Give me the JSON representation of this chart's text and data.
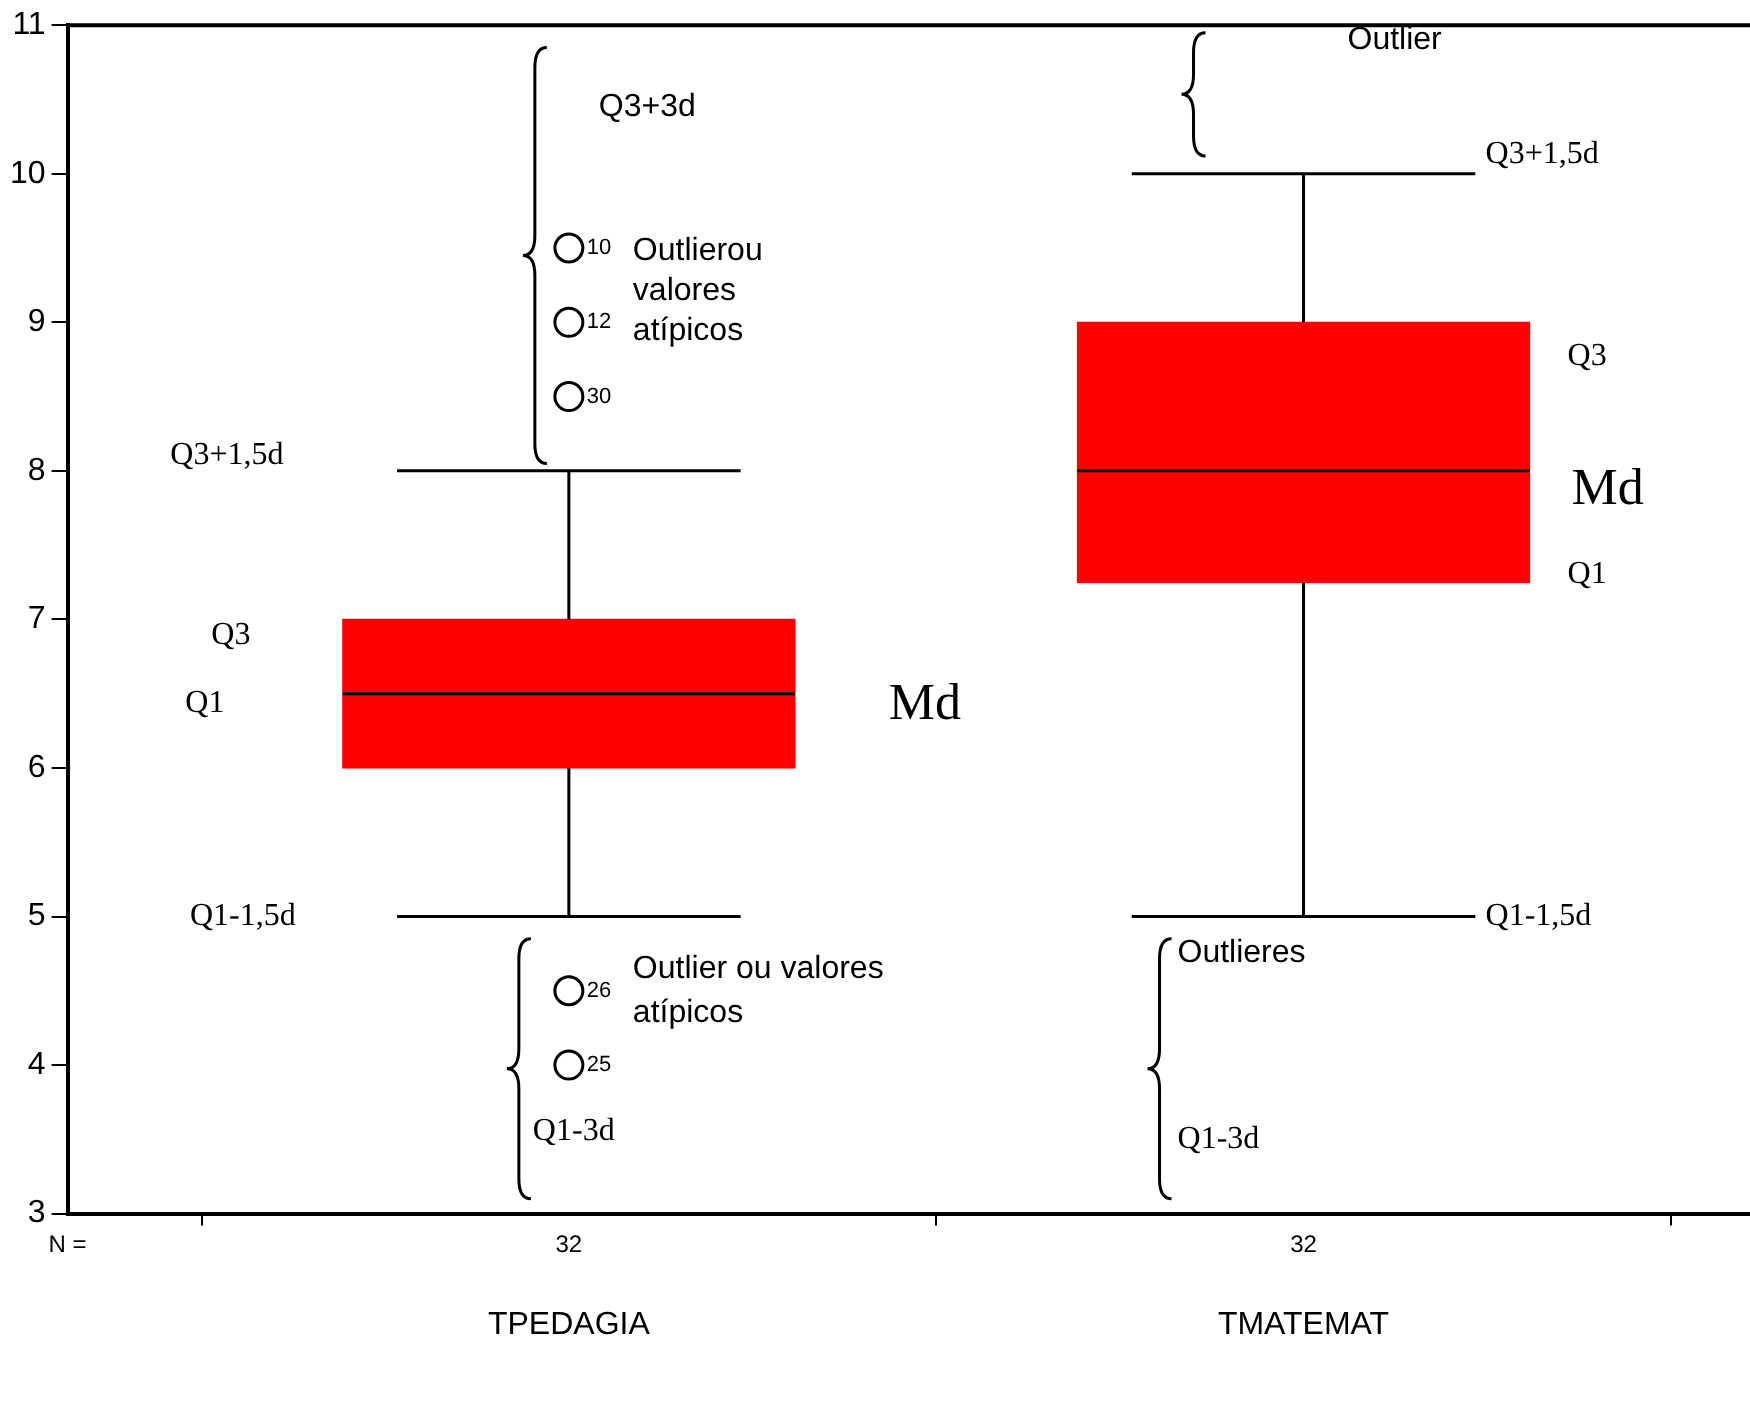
{
  "chart_data": {
    "type": "box",
    "categories": [
      "TPEDAGIA",
      "TMATEMAT"
    ],
    "series": [
      {
        "color": "#ff0000",
        "boxes": [
          {
            "low": 5,
            "q1": 6,
            "median": 6.5,
            "q3": 7,
            "high": 8,
            "outliers": [
              9.5,
              9,
              8.5,
              4.5,
              4
            ]
          },
          {
            "low": 5,
            "q1": 7.25,
            "median": 8,
            "q3": 9,
            "high": 10
          }
        ]
      }
    ],
    "ylim": [
      3,
      11
    ],
    "yticks": [
      3,
      4,
      5,
      6,
      7,
      8,
      9,
      10,
      11
    ],
    "grid": false,
    "legend": false,
    "marker": "circle",
    "annotations": [
      "Q3+3d",
      "10",
      "12",
      "30",
      "Outlierou valores atípicos",
      "Q3+1,5d",
      "Q3",
      "Md",
      "Q1",
      "Q1-1,5d",
      "26",
      "Outlier ou valores atípicos",
      "25",
      "Q1-3d",
      "Outlier",
      "Q3+1,5d",
      "Q3",
      "Md",
      "Q1",
      "Q1-1,5d",
      "Outlieres",
      "Q1-3d",
      "N =",
      "32",
      "32"
    ]
  }
}
